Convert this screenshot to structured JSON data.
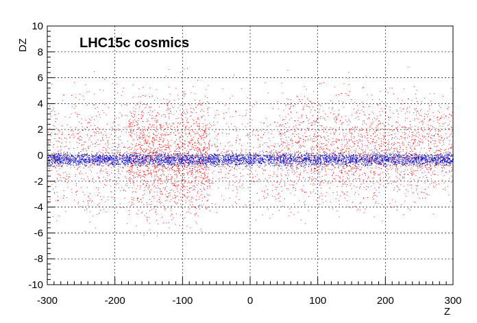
{
  "chart_data": {
    "type": "scatter",
    "title": "LHC15c cosmics",
    "xlabel": "Z",
    "ylabel": "DZ",
    "xlim": [
      -300,
      300
    ],
    "ylim": [
      -10,
      10
    ],
    "xticks": [
      -300,
      -200,
      -100,
      0,
      100,
      200,
      300
    ],
    "yticks": [
      -10,
      -8,
      -6,
      -4,
      -2,
      0,
      2,
      4,
      6,
      8,
      10
    ],
    "grid": true,
    "series": [
      {
        "color": "#ff0000",
        "regions": [
          {
            "z_range": [
              -300,
              -60
            ],
            "dz_center": 0.0,
            "dz_spread": 3.2,
            "density": 0.6
          },
          {
            "z_range": [
              -180,
              -60
            ],
            "dz_center": 0.0,
            "dz_spread": 3.4,
            "density": 1.0
          },
          {
            "z_range": [
              -60,
              40
            ],
            "dz_center": 0.0,
            "dz_spread": 3.0,
            "density": 0.45
          },
          {
            "z_range": [
              40,
              300
            ],
            "dz_center": 0.5,
            "dz_spread": 3.0,
            "density": 0.9
          }
        ]
      },
      {
        "color": "#0000cc",
        "regions": [
          {
            "z_range": [
              -300,
              300
            ],
            "dz_center": -0.3,
            "dz_spread": 0.35,
            "density": 0.8
          }
        ]
      }
    ]
  }
}
